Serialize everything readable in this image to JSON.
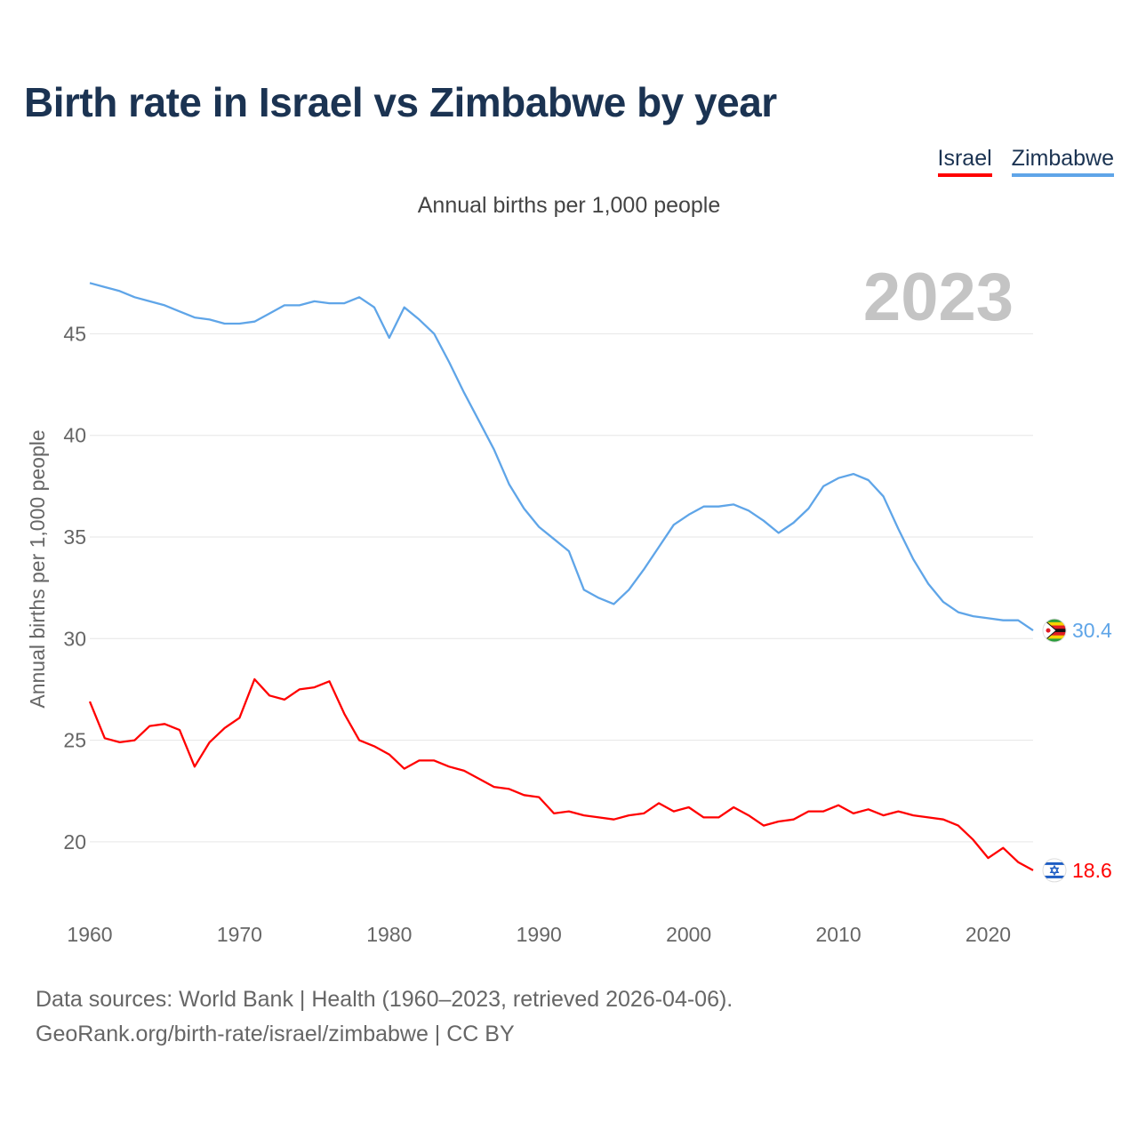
{
  "title": "Birth rate in Israel vs Zimbabwe by year",
  "subtitle": "Annual births per 1,000 people",
  "legend": {
    "israel": "Israel",
    "zimbabwe": "Zimbabwe"
  },
  "footer": {
    "line1": "Data sources: World Bank | Health (1960–2023, retrieved 2026-04-06).",
    "line2": "GeoRank.org/birth-rate/israel/zimbabwe | CC BY"
  },
  "colors": {
    "israel": "#ff0000",
    "zimbabwe": "#5fa5e8",
    "title": "#1b3352"
  },
  "icons": {
    "israel": "israel-flag-icon",
    "zimbabwe": "zimbabwe-flag-icon"
  },
  "chart_data": {
    "type": "line",
    "title": "Birth rate in Israel vs Zimbabwe by year",
    "ylabel": "Annual births per 1,000 people",
    "xlabel": "",
    "year_label": "2023",
    "xlim": [
      1960,
      2023
    ],
    "ylim": [
      16.8,
      48.3
    ],
    "x_ticks": [
      1960,
      1970,
      1980,
      1990,
      2000,
      2010,
      2020
    ],
    "y_ticks": [
      20,
      25,
      30,
      35,
      40,
      45
    ],
    "grid": true,
    "x": [
      1960,
      1961,
      1962,
      1963,
      1964,
      1965,
      1966,
      1967,
      1968,
      1969,
      1970,
      1971,
      1972,
      1973,
      1974,
      1975,
      1976,
      1977,
      1978,
      1979,
      1980,
      1981,
      1982,
      1983,
      1984,
      1985,
      1986,
      1987,
      1988,
      1989,
      1990,
      1991,
      1992,
      1993,
      1994,
      1995,
      1996,
      1997,
      1998,
      1999,
      2000,
      2001,
      2002,
      2003,
      2004,
      2005,
      2006,
      2007,
      2008,
      2009,
      2010,
      2011,
      2012,
      2013,
      2014,
      2015,
      2016,
      2017,
      2018,
      2019,
      2020,
      2021,
      2022,
      2023
    ],
    "series": [
      {
        "name": "Zimbabwe",
        "key": "zimbabwe",
        "end_label": "30.4",
        "values": [
          47.5,
          47.3,
          47.1,
          46.8,
          46.6,
          46.4,
          46.1,
          45.8,
          45.7,
          45.5,
          45.5,
          45.6,
          46.0,
          46.4,
          46.4,
          46.6,
          46.5,
          46.5,
          46.8,
          46.3,
          44.8,
          46.3,
          45.7,
          45.0,
          43.6,
          42.1,
          40.7,
          39.3,
          37.6,
          36.4,
          35.5,
          34.9,
          34.3,
          32.4,
          32.0,
          31.7,
          32.4,
          33.4,
          34.5,
          35.6,
          36.1,
          36.5,
          36.5,
          36.6,
          36.3,
          35.8,
          35.2,
          35.7,
          36.4,
          37.5,
          37.9,
          38.1,
          37.8,
          37.0,
          35.4,
          33.9,
          32.7,
          31.8,
          31.3,
          31.1,
          31.0,
          30.9,
          30.9,
          30.4
        ]
      },
      {
        "name": "Israel",
        "key": "israel",
        "end_label": "18.6",
        "values": [
          26.9,
          25.1,
          24.9,
          25.0,
          25.7,
          25.8,
          25.5,
          23.7,
          24.9,
          25.6,
          26.1,
          28.0,
          27.2,
          27.0,
          27.5,
          27.6,
          27.9,
          26.3,
          25.0,
          24.7,
          24.3,
          23.6,
          24.0,
          24.0,
          23.7,
          23.5,
          23.1,
          22.7,
          22.6,
          22.3,
          22.2,
          21.4,
          21.5,
          21.3,
          21.2,
          21.1,
          21.3,
          21.4,
          21.9,
          21.5,
          21.7,
          21.2,
          21.2,
          21.7,
          21.3,
          20.8,
          21.0,
          21.1,
          21.5,
          21.5,
          21.8,
          21.4,
          21.6,
          21.3,
          21.5,
          21.3,
          21.2,
          21.1,
          20.8,
          20.1,
          19.2,
          19.7,
          19.0,
          18.6
        ]
      }
    ]
  }
}
